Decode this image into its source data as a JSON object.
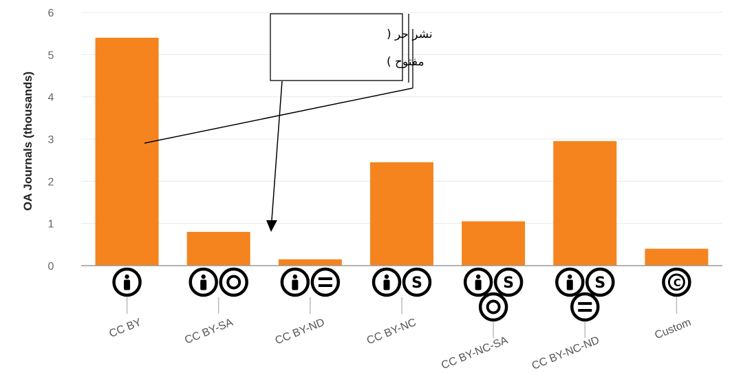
{
  "chart_data": {
    "type": "bar",
    "ylabel": "OA Journals (thousands)",
    "ylim": [
      0,
      6
    ],
    "yticks": [
      0,
      1,
      2,
      3,
      4,
      5,
      6
    ],
    "grid": true,
    "bar_color": "#f5841f",
    "categories": [
      "CC BY",
      "CC BY-SA",
      "CC BY-ND",
      "CC BY-NC",
      "CC BY-NC-SA",
      "CC BY-NC-ND",
      "Custom"
    ],
    "values": [
      5.4,
      0.8,
      0.15,
      2.45,
      1.05,
      2.95,
      0.4
    ],
    "license_icons": [
      [
        "by-icon"
      ],
      [
        "by-icon",
        "sa-icon"
      ],
      [
        "by-icon",
        "nd-icon"
      ],
      [
        "by-icon",
        "nc-icon"
      ],
      [
        "by-icon",
        "nc-icon",
        "sa-icon"
      ],
      [
        "by-icon",
        "nc-icon",
        "nd-icon"
      ],
      [
        "copyright-icon"
      ]
    ],
    "annotation": {
      "lines": [
        "نشر حر (",
        "مفتوح )"
      ]
    }
  }
}
